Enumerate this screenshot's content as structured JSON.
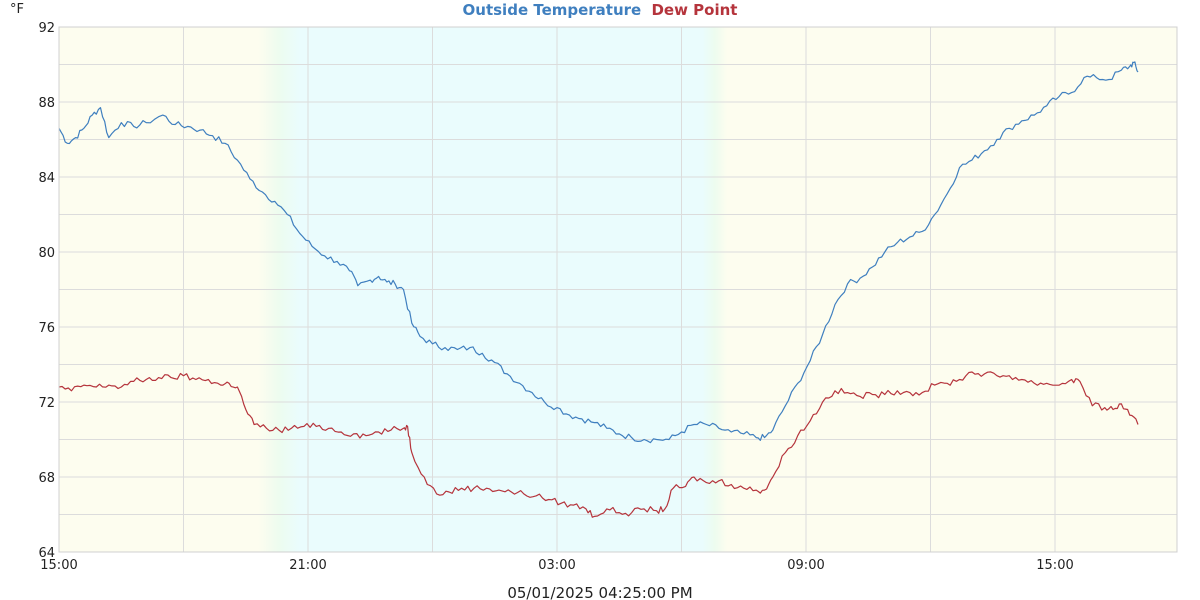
{
  "chart_data": {
    "type": "line",
    "title": "",
    "legend": [
      {
        "name": "Outside Temperature",
        "color": "#3f7fbf"
      },
      {
        "name": "Dew Point",
        "color": "#b5343c"
      }
    ],
    "unit_label": "°F",
    "footer": "05/01/2025 04:25:00 PM",
    "y_range": [
      64,
      92
    ],
    "y_ticks": [
      64,
      68,
      72,
      76,
      80,
      84,
      88,
      92
    ],
    "x_range_hours": [
      0,
      27
    ],
    "x_ticks": [
      {
        "label": "15:00",
        "h": 0
      },
      {
        "label": "21:00",
        "h": 6
      },
      {
        "label": "03:00",
        "h": 12
      },
      {
        "label": "09:00",
        "h": 18
      },
      {
        "label": "15:00",
        "h": 24
      }
    ],
    "grid": true,
    "background_bands": {
      "day_color": "#fdfdef",
      "night_color": "#eafcfd",
      "dusk_start_h": 4.8,
      "night_start_h": 5.8,
      "dawn_start_h": 15.5,
      "day_start_h": 16.1
    },
    "series": [
      {
        "name": "Outside Temperature",
        "color": "#3f7fbf",
        "points": [
          [
            0.0,
            86.6
          ],
          [
            0.2,
            85.8
          ],
          [
            0.4,
            86.1
          ],
          [
            0.6,
            86.6
          ],
          [
            0.8,
            87.3
          ],
          [
            1.0,
            87.7
          ],
          [
            1.2,
            86.1
          ],
          [
            1.5,
            86.9
          ],
          [
            1.8,
            86.7
          ],
          [
            2.1,
            86.9
          ],
          [
            2.5,
            87.3
          ],
          [
            2.8,
            86.8
          ],
          [
            3.1,
            86.7
          ],
          [
            3.4,
            86.5
          ],
          [
            3.7,
            86.2
          ],
          [
            4.0,
            85.8
          ],
          [
            4.3,
            84.9
          ],
          [
            4.6,
            83.9
          ],
          [
            4.9,
            83.2
          ],
          [
            5.2,
            82.7
          ],
          [
            5.5,
            82.0
          ],
          [
            5.8,
            81.0
          ],
          [
            6.1,
            80.3
          ],
          [
            6.4,
            79.8
          ],
          [
            6.7,
            79.5
          ],
          [
            7.0,
            79.0
          ],
          [
            7.2,
            78.2
          ],
          [
            7.5,
            78.5
          ],
          [
            7.7,
            78.7
          ],
          [
            7.9,
            78.4
          ],
          [
            8.1,
            78.3
          ],
          [
            8.3,
            78.0
          ],
          [
            8.5,
            76.2
          ],
          [
            8.7,
            75.5
          ],
          [
            9.0,
            75.1
          ],
          [
            9.3,
            74.9
          ],
          [
            9.6,
            74.8
          ],
          [
            9.9,
            74.9
          ],
          [
            10.2,
            74.6
          ],
          [
            10.5,
            74.1
          ],
          [
            10.8,
            73.5
          ],
          [
            11.1,
            73.0
          ],
          [
            11.4,
            72.5
          ],
          [
            11.7,
            72.0
          ],
          [
            12.0,
            71.7
          ],
          [
            12.3,
            71.3
          ],
          [
            12.6,
            71.1
          ],
          [
            12.9,
            70.9
          ],
          [
            13.2,
            70.6
          ],
          [
            13.5,
            70.3
          ],
          [
            13.8,
            70.1
          ],
          [
            14.1,
            70.0
          ],
          [
            14.4,
            70.0
          ],
          [
            14.7,
            70.0
          ],
          [
            15.0,
            70.4
          ],
          [
            15.3,
            70.8
          ],
          [
            15.6,
            70.8
          ],
          [
            15.9,
            70.6
          ],
          [
            16.2,
            70.4
          ],
          [
            16.5,
            70.3
          ],
          [
            16.8,
            70.1
          ],
          [
            17.0,
            70.1
          ],
          [
            17.2,
            70.5
          ],
          [
            17.5,
            71.8
          ],
          [
            17.8,
            73.0
          ],
          [
            18.1,
            74.2
          ],
          [
            18.4,
            75.6
          ],
          [
            18.7,
            77.2
          ],
          [
            19.0,
            78.3
          ],
          [
            19.3,
            78.6
          ],
          [
            19.6,
            79.2
          ],
          [
            19.9,
            80.0
          ],
          [
            20.2,
            80.5
          ],
          [
            20.5,
            80.8
          ],
          [
            20.8,
            81.1
          ],
          [
            21.1,
            82.0
          ],
          [
            21.4,
            83.1
          ],
          [
            21.7,
            84.5
          ],
          [
            22.0,
            84.9
          ],
          [
            22.3,
            85.4
          ],
          [
            22.6,
            86.0
          ],
          [
            22.9,
            86.6
          ],
          [
            23.2,
            87.0
          ],
          [
            23.5,
            87.3
          ],
          [
            23.8,
            87.8
          ],
          [
            24.1,
            88.3
          ],
          [
            24.4,
            88.5
          ],
          [
            24.7,
            89.3
          ],
          [
            25.0,
            89.3
          ],
          [
            25.3,
            89.2
          ],
          [
            25.6,
            89.7
          ],
          [
            25.8,
            89.9
          ],
          [
            25.9,
            90.1
          ],
          [
            26.0,
            89.6
          ]
        ]
      },
      {
        "name": "Dew Point",
        "color": "#b5343c",
        "points": [
          [
            0.0,
            72.8
          ],
          [
            0.3,
            72.6
          ],
          [
            0.6,
            72.9
          ],
          [
            0.9,
            72.8
          ],
          [
            1.2,
            72.9
          ],
          [
            1.5,
            72.8
          ],
          [
            1.8,
            73.1
          ],
          [
            2.1,
            73.2
          ],
          [
            2.4,
            73.3
          ],
          [
            2.7,
            73.3
          ],
          [
            3.0,
            73.4
          ],
          [
            3.3,
            73.2
          ],
          [
            3.6,
            73.2
          ],
          [
            3.9,
            72.9
          ],
          [
            4.1,
            73.0
          ],
          [
            4.3,
            72.8
          ],
          [
            4.5,
            71.6
          ],
          [
            4.7,
            70.8
          ],
          [
            5.0,
            70.6
          ],
          [
            5.3,
            70.5
          ],
          [
            5.6,
            70.6
          ],
          [
            5.9,
            70.7
          ],
          [
            6.2,
            70.7
          ],
          [
            6.5,
            70.6
          ],
          [
            6.8,
            70.4
          ],
          [
            7.1,
            70.3
          ],
          [
            7.4,
            70.2
          ],
          [
            7.7,
            70.4
          ],
          [
            8.0,
            70.5
          ],
          [
            8.3,
            70.6
          ],
          [
            8.4,
            70.7
          ],
          [
            8.5,
            69.3
          ],
          [
            8.8,
            68.0
          ],
          [
            9.1,
            67.1
          ],
          [
            9.4,
            67.2
          ],
          [
            9.7,
            67.4
          ],
          [
            10.0,
            67.4
          ],
          [
            10.3,
            67.4
          ],
          [
            10.6,
            67.3
          ],
          [
            10.9,
            67.2
          ],
          [
            11.2,
            67.1
          ],
          [
            11.5,
            67.0
          ],
          [
            11.8,
            66.8
          ],
          [
            12.1,
            66.6
          ],
          [
            12.4,
            66.5
          ],
          [
            12.7,
            66.3
          ],
          [
            12.9,
            65.9
          ],
          [
            13.2,
            66.3
          ],
          [
            13.5,
            66.1
          ],
          [
            13.8,
            66.1
          ],
          [
            14.1,
            66.3
          ],
          [
            14.4,
            66.2
          ],
          [
            14.6,
            66.3
          ],
          [
            14.8,
            67.4
          ],
          [
            15.1,
            67.5
          ],
          [
            15.3,
            68.0
          ],
          [
            15.6,
            67.7
          ],
          [
            15.9,
            67.8
          ],
          [
            16.2,
            67.6
          ],
          [
            16.5,
            67.4
          ],
          [
            16.8,
            67.3
          ],
          [
            17.0,
            67.3
          ],
          [
            17.2,
            68.0
          ],
          [
            17.5,
            69.3
          ],
          [
            17.8,
            70.2
          ],
          [
            18.1,
            71.0
          ],
          [
            18.4,
            72.0
          ],
          [
            18.7,
            72.6
          ],
          [
            19.0,
            72.5
          ],
          [
            19.3,
            72.3
          ],
          [
            19.6,
            72.4
          ],
          [
            19.9,
            72.4
          ],
          [
            20.2,
            72.6
          ],
          [
            20.5,
            72.5
          ],
          [
            20.8,
            72.5
          ],
          [
            21.1,
            72.9
          ],
          [
            21.4,
            73.0
          ],
          [
            21.7,
            73.2
          ],
          [
            22.0,
            73.6
          ],
          [
            22.3,
            73.5
          ],
          [
            22.6,
            73.4
          ],
          [
            22.9,
            73.4
          ],
          [
            23.2,
            73.2
          ],
          [
            23.5,
            73.0
          ],
          [
            23.8,
            73.0
          ],
          [
            24.1,
            72.9
          ],
          [
            24.4,
            73.2
          ],
          [
            24.6,
            73.1
          ],
          [
            24.9,
            71.8
          ],
          [
            25.2,
            71.7
          ],
          [
            25.4,
            71.6
          ],
          [
            25.6,
            71.9
          ],
          [
            25.8,
            71.3
          ],
          [
            26.0,
            70.8
          ]
        ]
      }
    ]
  }
}
